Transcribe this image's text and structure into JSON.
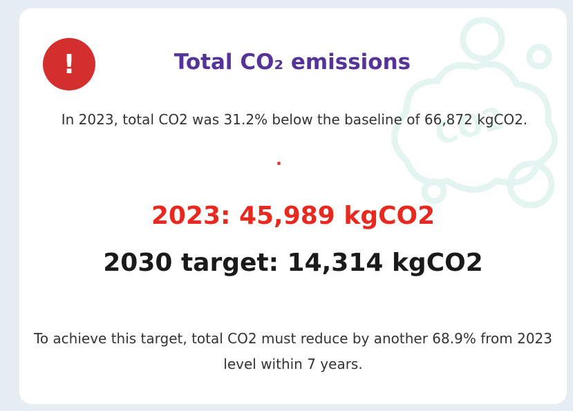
{
  "icon": "!",
  "title": "Total CO₂ emissions",
  "decoration_label": "CO2",
  "summary": "In 2023, total CO2 was 31.2% below the baseline of 66,872 kgCO2.",
  "current": "2023: 45,989 kgCO2",
  "target": "2030 target: 14,314 kgCO2",
  "footer": "To achieve this target, total CO2 must reduce by another 68.9% from 2023 level within 7 years."
}
